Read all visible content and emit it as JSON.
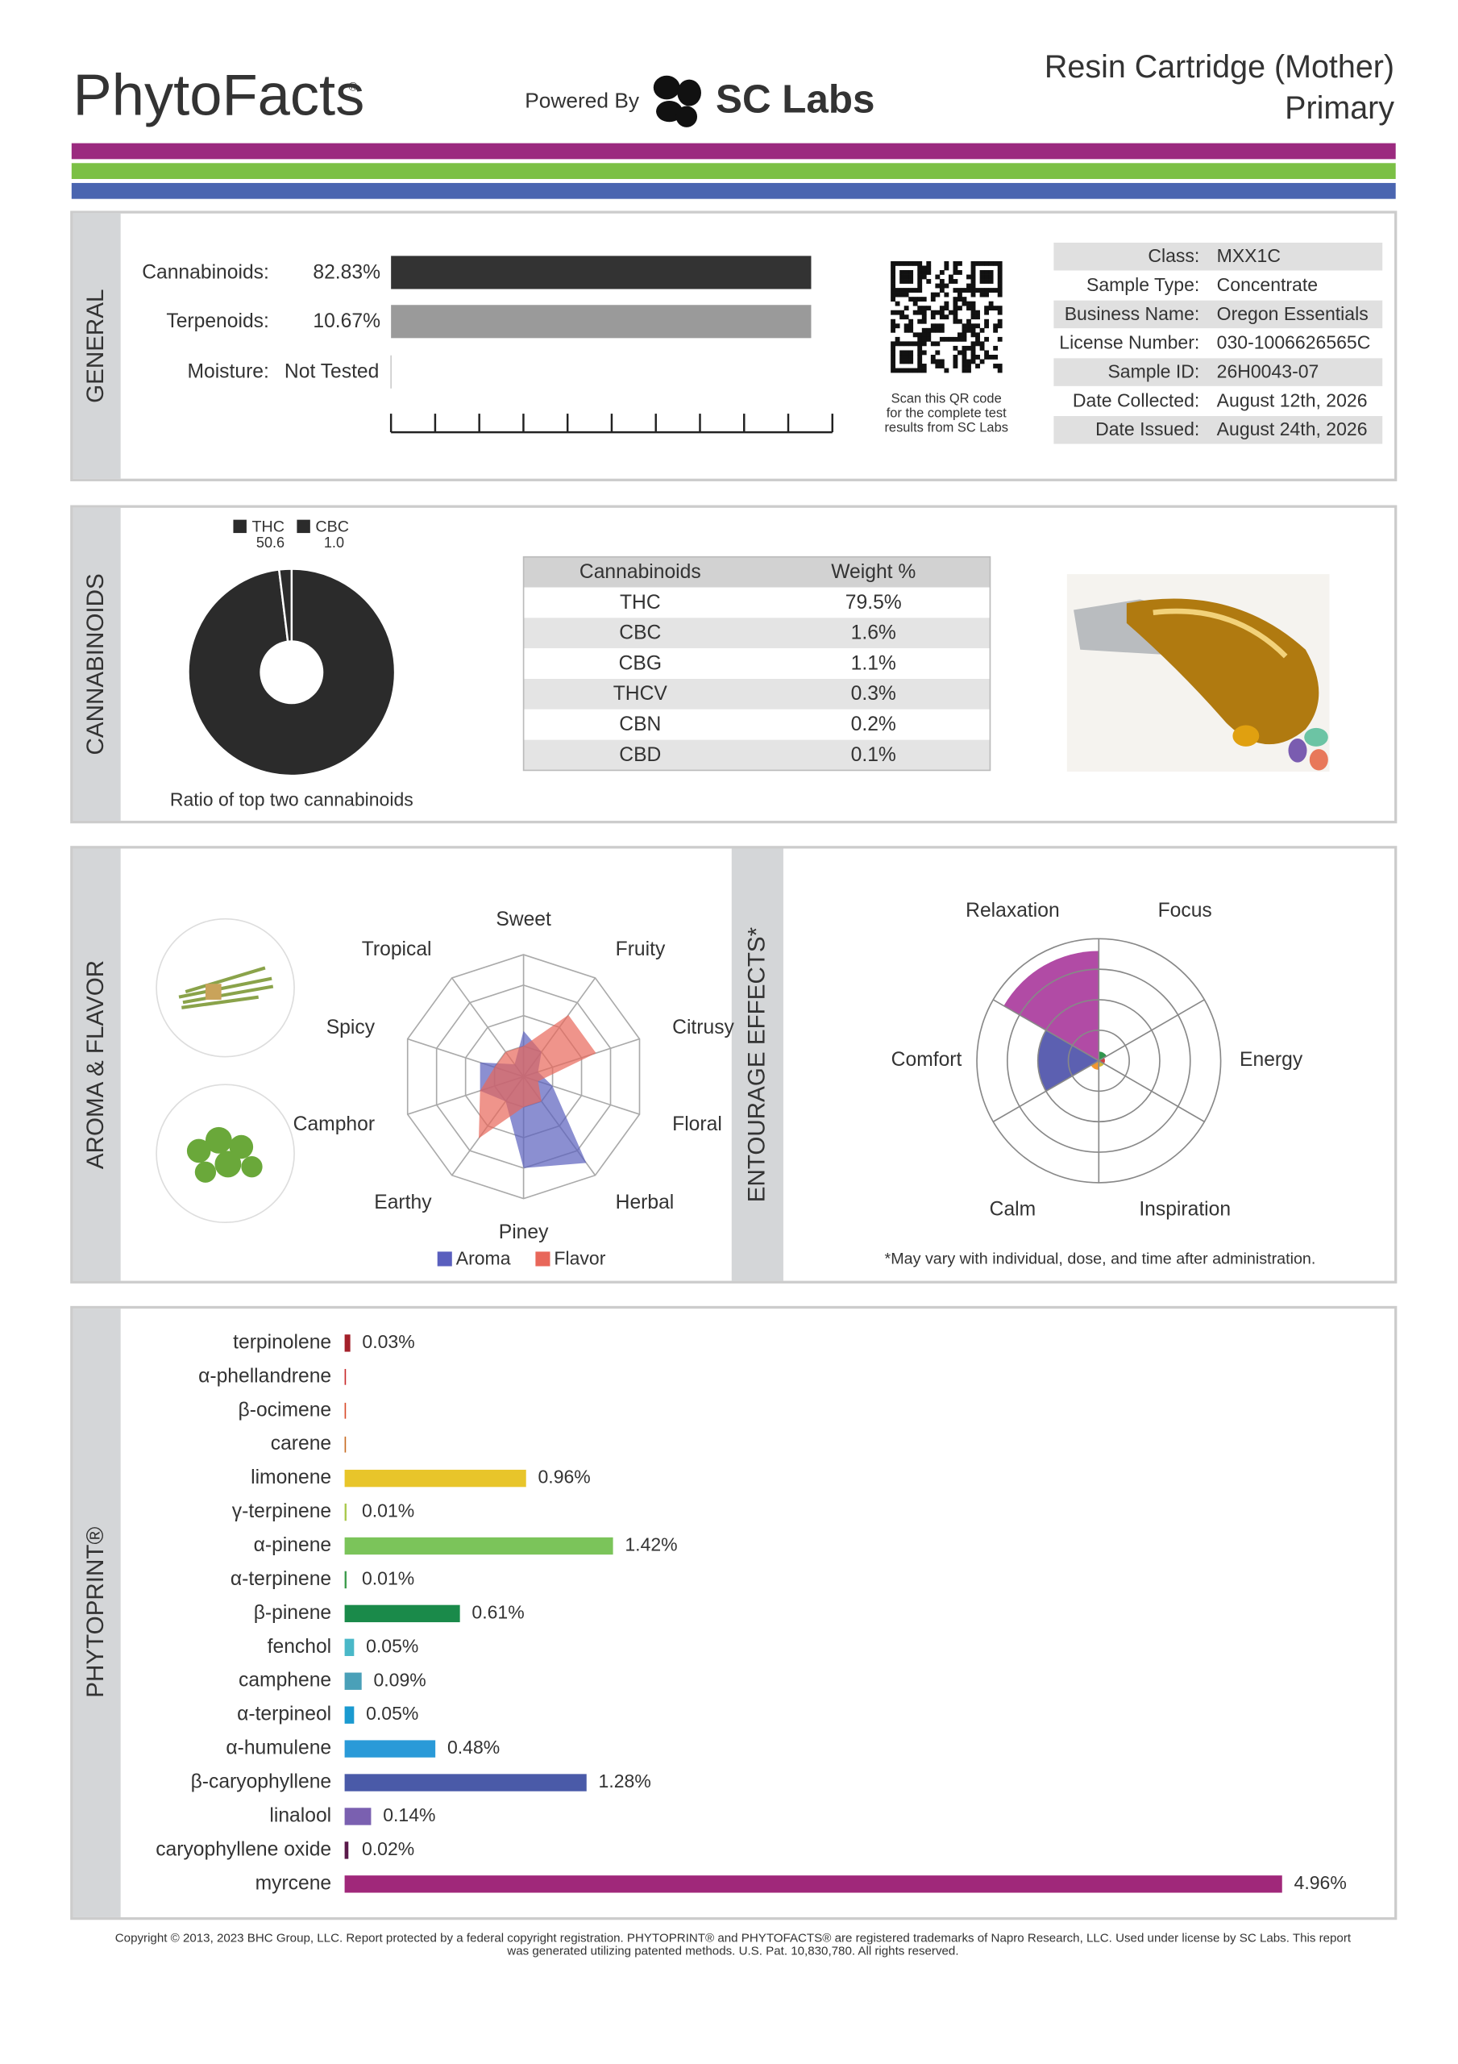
{
  "header": {
    "brand": "PhytoFacts",
    "powered_by": "Powered By",
    "lab": "SC Labs",
    "product": "Resin Cartridge (Mother)",
    "variant": "Primary"
  },
  "general": {
    "section": "GENERAL",
    "rows": [
      {
        "label": "Cannabinoids:",
        "value": 82.83,
        "value_label": "82.83%",
        "color": "#333333"
      },
      {
        "label": "Terpenoids:",
        "value": 10.67,
        "value_label": "10.67%",
        "color": "#9a9a9a"
      },
      {
        "label": "Moisture:",
        "value_label": "Not Tested"
      }
    ],
    "qr_caption": [
      "Scan this QR code",
      "for the complete test",
      "results from SC Labs"
    ],
    "info": [
      [
        "Class:",
        "MXX1C"
      ],
      [
        "Sample Type:",
        "Concentrate"
      ],
      [
        "Business Name:",
        "Oregon Essentials"
      ],
      [
        "License Number:",
        "030-1006626565C"
      ],
      [
        "Sample ID:",
        "26H0043-07"
      ],
      [
        "Date Collected:",
        "August 12th, 2026"
      ],
      [
        "Date Issued:",
        "August 24th, 2026"
      ]
    ]
  },
  "cannabinoids": {
    "section": "CANNABINOIDS",
    "ratio_chart": {
      "type": "pie",
      "categories": [
        "THC",
        "CBC"
      ],
      "values": [
        50.6,
        1.0
      ],
      "value_labels": [
        "50.6",
        "1.0"
      ],
      "color": "#2b2b2b",
      "caption": "Ratio of top two cannabinoids"
    },
    "table": {
      "header": [
        "Cannabinoids",
        "Weight %"
      ],
      "rows": [
        [
          "THC",
          "79.5%"
        ],
        [
          "CBC",
          "1.6%"
        ],
        [
          "CBG",
          "1.1%"
        ],
        [
          "THCV",
          "0.3%"
        ],
        [
          "CBN",
          "0.2%"
        ],
        [
          "CBD",
          "0.1%"
        ]
      ]
    }
  },
  "aroma": {
    "section": "AROMA & FLAVOR",
    "radar": {
      "type": "radar",
      "categories": [
        "Sweet",
        "Fruity",
        "Citrusy",
        "Floral",
        "Herbal",
        "Piney",
        "Earthy",
        "Camphor",
        "Spicy",
        "Tropical"
      ],
      "rlim": [
        0,
        4
      ],
      "rticks": [
        1,
        2,
        3,
        4
      ],
      "series": [
        {
          "name": "Aroma",
          "color": "#5a5fbe",
          "values": [
            1.5,
            1,
            0.5,
            1,
            3.5,
            3,
            1,
            1.5,
            1.5,
            0.5
          ]
        },
        {
          "name": "Flavor",
          "color": "#e8675a",
          "values": [
            1,
            2.5,
            2.5,
            0.5,
            1,
            1,
            2.5,
            1.5,
            1,
            1
          ]
        }
      ]
    }
  },
  "entourage": {
    "section": "ENTOURAGE EFFECTS*",
    "chart": {
      "type": "polar",
      "categories": [
        "Focus",
        "Energy",
        "Inspiration",
        "Calm",
        "Comfort",
        "Relaxation"
      ],
      "colors": [
        "#1a8a3a",
        "#cc2a2a",
        "#c8b020",
        "#f08c1a",
        "#4a4fa8",
        "#a8379b"
      ],
      "values": [
        0.3,
        0.2,
        0.2,
        0.3,
        2,
        3.6
      ],
      "rlim": [
        0,
        4
      ],
      "rticks": [
        1,
        2,
        3,
        4
      ]
    },
    "footnote": "*May vary with individual, dose, and time after administration."
  },
  "phytoprint": {
    "section": "PHYTOPRINT®",
    "chart": {
      "type": "bar",
      "xlim": [
        0,
        5
      ],
      "categories": [
        "terpinolene",
        "α-phellandrene",
        "β-ocimene",
        "carene",
        "limonene",
        "γ-terpinene",
        "α-pinene",
        "α-terpinene",
        "β-pinene",
        "fenchol",
        "camphene",
        "α-terpineol",
        "α-humulene",
        "β-caryophyllene",
        "linalool",
        "caryophyllene oxide",
        "myrcene"
      ],
      "values": [
        0.03,
        null,
        null,
        null,
        0.96,
        0.01,
        1.42,
        0.01,
        0.61,
        0.05,
        0.09,
        0.05,
        0.48,
        1.28,
        0.14,
        0.02,
        4.96
      ],
      "value_labels": [
        "0.03%",
        null,
        null,
        null,
        "0.96%",
        "0.01%",
        "1.42%",
        "0.01%",
        "0.61%",
        "0.05%",
        "0.09%",
        "0.05%",
        "0.48%",
        "1.28%",
        "0.14%",
        "0.02%",
        "4.96%"
      ],
      "colors": [
        "#a3202a",
        "#c8282a",
        "#d84a2a",
        "#c86a20",
        "#e8c52a",
        "#a8c84a",
        "#7bc45a",
        "#3a9a4a",
        "#1a8a4a",
        "#4ab8c8",
        "#4aa0b8",
        "#1a9ad0",
        "#2a9ad8",
        "#4a5aa8",
        "#7a60b0",
        "#5a1a4a",
        "#a0287a"
      ]
    }
  },
  "footer": [
    "Copyright © 2013, 2023 BHC Group, LLC. Report protected by a federal copyright registration. PHYTOPRINT® and PHYTOFACTS® are registered trademarks of Napro Research, LLC. Used under license by SC Labs. This report",
    "was generated utilizing patented methods. U.S. Pat. 10,830,780. All rights reserved."
  ]
}
